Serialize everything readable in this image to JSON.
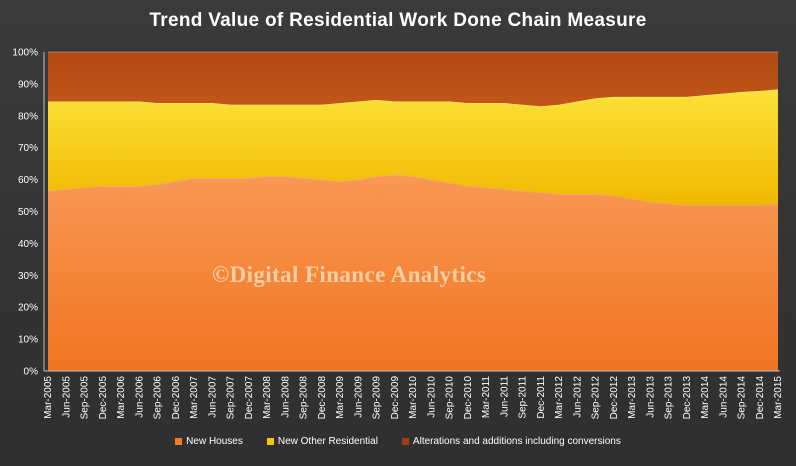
{
  "chart_data": {
    "type": "area",
    "stacked": "percent",
    "title": "Trend Value of Residential Work Done Chain Measure",
    "watermark": "©Digital Finance Analytics",
    "x": [
      "Mar-2005",
      "Jun-2005",
      "Sep-2005",
      "Dec-2005",
      "Mar-2006",
      "Jun-2006",
      "Sep-2006",
      "Dec-2006",
      "Mar-2007",
      "Jun-2007",
      "Sep-2007",
      "Dec-2007",
      "Mar-2008",
      "Jun-2008",
      "Sep-2008",
      "Dec-2008",
      "Mar-2009",
      "Jun-2009",
      "Sep-2009",
      "Dec-2009",
      "Mar-2010",
      "Jun-2010",
      "Sep-2010",
      "Dec-2010",
      "Mar-2011",
      "Jun-2011",
      "Sep-2011",
      "Dec-2011",
      "Mar-2012",
      "Jun-2012",
      "Sep-2012",
      "Dec-2012",
      "Mar-2013",
      "Jun-2013",
      "Sep-2013",
      "Dec-2013",
      "Mar-2014",
      "Jun-2014",
      "Sep-2014",
      "Dec-2014",
      "Mar-2015"
    ],
    "yticks": [
      "0%",
      "10%",
      "20%",
      "30%",
      "40%",
      "50%",
      "60%",
      "70%",
      "80%",
      "90%",
      "100%"
    ],
    "ylim": [
      0,
      100
    ],
    "series": [
      {
        "name": "New  Houses",
        "color": "#f47d2a",
        "values": [
          56.5,
          57.0,
          57.5,
          58.0,
          58.0,
          58.0,
          58.5,
          59.5,
          60.5,
          60.5,
          60.5,
          60.5,
          61.0,
          61.0,
          60.5,
          60.0,
          59.5,
          60.0,
          61.0,
          61.5,
          61.0,
          60.0,
          59.0,
          58.0,
          57.5,
          57.0,
          56.5,
          56.0,
          55.5,
          55.5,
          55.5,
          55.0,
          54.0,
          53.0,
          52.5,
          52.0,
          52.0,
          52.0,
          52.0,
          52.0,
          52.5
        ]
      },
      {
        "name": "New Other Residential",
        "color": "#f7c600",
        "values": [
          28.0,
          27.5,
          27.0,
          26.5,
          26.5,
          26.5,
          25.5,
          24.5,
          23.5,
          23.5,
          23.0,
          23.0,
          22.5,
          22.5,
          23.0,
          23.5,
          24.5,
          24.5,
          24.0,
          23.0,
          23.5,
          24.5,
          25.5,
          26.0,
          26.5,
          27.0,
          27.0,
          27.0,
          28.0,
          29.0,
          30.0,
          31.0,
          32.0,
          33.0,
          33.5,
          34.0,
          34.5,
          35.0,
          35.5,
          35.8,
          35.8
        ]
      },
      {
        "name": "Alterations and additions including conversions",
        "color": "#a13e10",
        "values": [
          15.5,
          15.5,
          15.5,
          15.5,
          15.5,
          15.5,
          16.0,
          16.0,
          16.0,
          16.0,
          16.5,
          16.5,
          16.5,
          16.5,
          16.5,
          16.5,
          16.0,
          15.5,
          15.0,
          15.5,
          15.5,
          15.5,
          15.5,
          16.0,
          16.0,
          16.0,
          16.5,
          17.0,
          16.5,
          15.5,
          14.5,
          14.0,
          14.0,
          14.0,
          14.0,
          14.0,
          13.5,
          13.0,
          12.5,
          12.2,
          11.7
        ]
      }
    ],
    "legend_position": "bottom",
    "grid": false
  }
}
